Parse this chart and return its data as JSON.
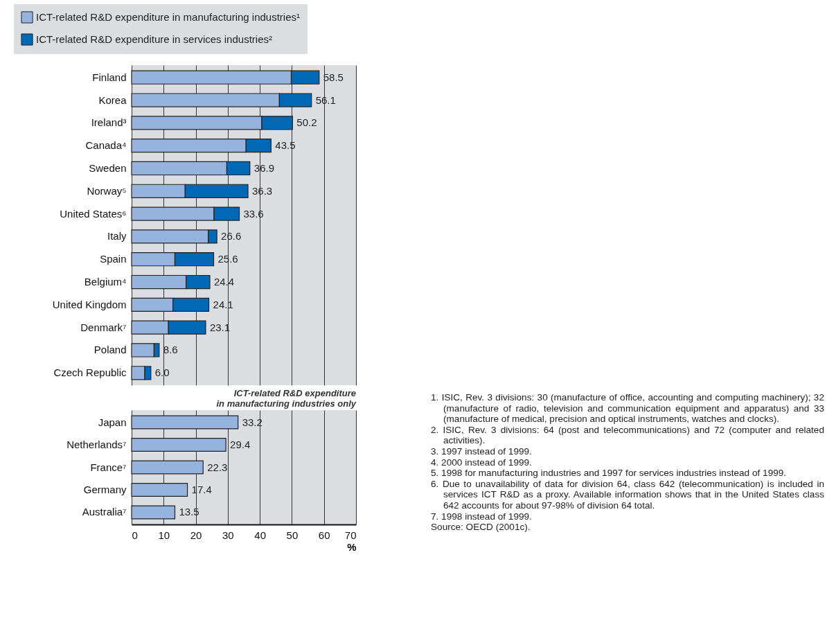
{
  "chart_data": [
    {
      "type": "bar",
      "orientation": "horizontal",
      "stacked": true,
      "categories": [
        "Finland",
        "Korea",
        "Ireland³",
        "Canada⁴",
        "Sweden",
        "Norway⁵",
        "United States⁶",
        "Italy",
        "Spain",
        "Belgium⁴",
        "United Kingdom",
        "Denmark⁷",
        "Poland",
        "Czech Republic"
      ],
      "series": [
        {
          "name": "ICT-related R&D expenditure in manufacturing industries¹",
          "color": "#95b3de",
          "values": [
            49.8,
            46.1,
            40.6,
            35.7,
            29.7,
            16.7,
            25.7,
            23.9,
            13.5,
            17.0,
            12.9,
            11.5,
            7.0,
            4.1
          ]
        },
        {
          "name": "ICT-related R&D expenditure in services industries²",
          "color": "#0068b4",
          "values": [
            8.7,
            10.0,
            9.6,
            7.8,
            7.2,
            19.6,
            7.9,
            2.7,
            12.1,
            7.4,
            11.2,
            11.6,
            1.6,
            1.9
          ]
        }
      ],
      "totals": [
        "58.5",
        "56.1",
        "50.2",
        "43.5",
        "36.9",
        "36.3",
        "33.6",
        "26.6",
        "25.6",
        "24.4",
        "24.1",
        "23.1",
        "8.6",
        "6.0"
      ],
      "xlim": [
        0,
        70
      ],
      "xticks": [
        0,
        10,
        20,
        30,
        40,
        50,
        60,
        70
      ],
      "grid": "x",
      "legend": "top left",
      "tick_labels": "y"
    },
    {
      "type": "bar",
      "orientation": "horizontal",
      "title": "ICT-related R&D expenditure\nin manufacturing industries only",
      "categories": [
        "Japan",
        "Netherlands⁷",
        "France⁷",
        "Germany",
        "Australia⁷"
      ],
      "series": [
        {
          "color": "#95b3de",
          "values": [
            33.2,
            29.4,
            22.3,
            17.4,
            13.5
          ]
        }
      ],
      "data_labels": true,
      "xlabel": "%",
      "xlim": [
        0,
        70
      ],
      "xticks": [
        0,
        10,
        20,
        30,
        40,
        50,
        60,
        70
      ],
      "grid": "x",
      "annotations": [
        "1. ISIC, Rev. 3 divisions: 30 (manufacture of office, accounting and computing machinery); 32 (manufacture of radio, television and communication equipment and apparatus) and 33 (manufacture of medical, precision and optical instruments, watches and clocks).",
        "2. ISIC, Rev. 3 divisions: 64 (post and telecommunications) and 72 (computer and related activities).",
        "3. 1997 instead of 1999.",
        "4. 2000 instead of 1999.",
        "5. 1998 for manufacturing industries and 1997 for services industries instead of 1999.",
        "6. Due to unavailability of data for division 64, class 642 (telecommunication) is included in services ICT R&D as a proxy. Available information shows that in the United States class 642 accounts for about 97-98% of division 64 total.",
        "7. 1998 instead of 1999.",
        "Source: OECD (2001c)."
      ]
    }
  ]
}
